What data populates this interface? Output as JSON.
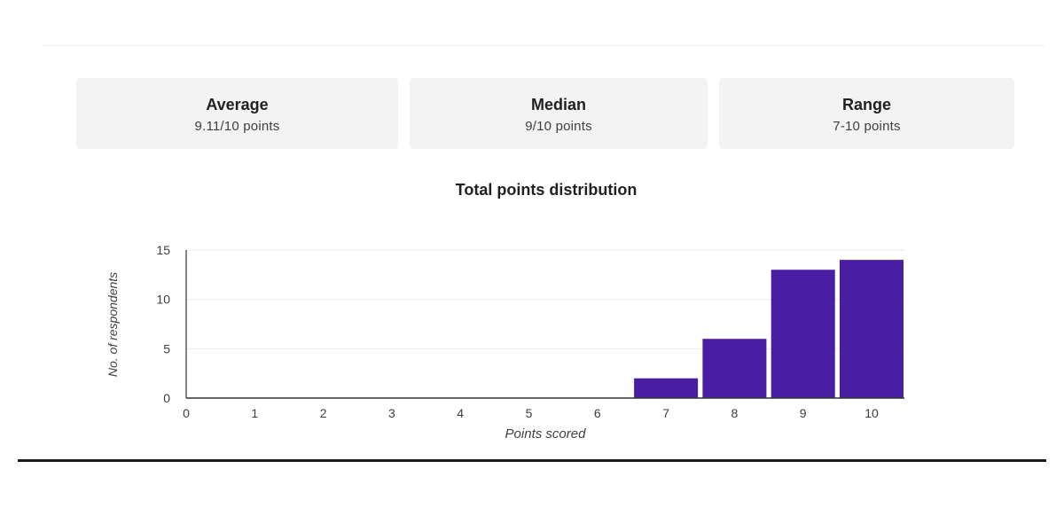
{
  "stats": [
    {
      "label": "Average",
      "value": "9.11/10 points"
    },
    {
      "label": "Median",
      "value": "9/10 points"
    },
    {
      "label": "Range",
      "value": "7-10 points"
    }
  ],
  "chart_data": {
    "type": "bar",
    "title": "Total points distribution",
    "xlabel": "Points scored",
    "ylabel": "No. of respondents",
    "categories": [
      "0",
      "1",
      "2",
      "3",
      "4",
      "5",
      "6",
      "7",
      "8",
      "9",
      "10"
    ],
    "values": [
      0,
      0,
      0,
      0,
      0,
      0,
      0,
      2,
      6,
      13,
      14
    ],
    "ylim": [
      0,
      15
    ],
    "yticks": [
      0,
      5,
      10,
      15
    ],
    "grid": true,
    "legend": "none",
    "bar_color": "#4a1ea3"
  }
}
